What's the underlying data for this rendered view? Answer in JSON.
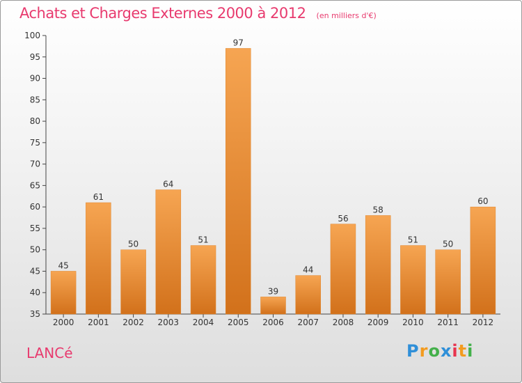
{
  "header": {
    "title": "Achats et Charges Externes 2000 à 2012",
    "subtitle": "(en milliers d'€)"
  },
  "footer": {
    "place": "LANCé",
    "logo_text": "Proxiti",
    "logo_colors": [
      "#2f8fd8",
      "#f39b1f",
      "#43b04a",
      "#2f8fd8",
      "#e8344e",
      "#f39b1f",
      "#43b04a"
    ]
  },
  "colors": {
    "bar_top": "#f6a552",
    "bar_bottom": "#d2711b",
    "title": "#e83a6e"
  },
  "chart_data": {
    "type": "bar",
    "title": "Achats et Charges Externes 2000 à 2012",
    "subtitle": "(en milliers d'€)",
    "categories": [
      "2000",
      "2001",
      "2002",
      "2003",
      "2004",
      "2005",
      "2006",
      "2007",
      "2008",
      "2009",
      "2010",
      "2011",
      "2012"
    ],
    "values": [
      45,
      61,
      50,
      64,
      51,
      97,
      39,
      44,
      56,
      58,
      51,
      50,
      60
    ],
    "ylim": [
      35,
      100
    ],
    "yticks": [
      35,
      40,
      45,
      50,
      55,
      60,
      65,
      70,
      75,
      80,
      85,
      90,
      95,
      100
    ],
    "grid": false,
    "legend": "none"
  }
}
